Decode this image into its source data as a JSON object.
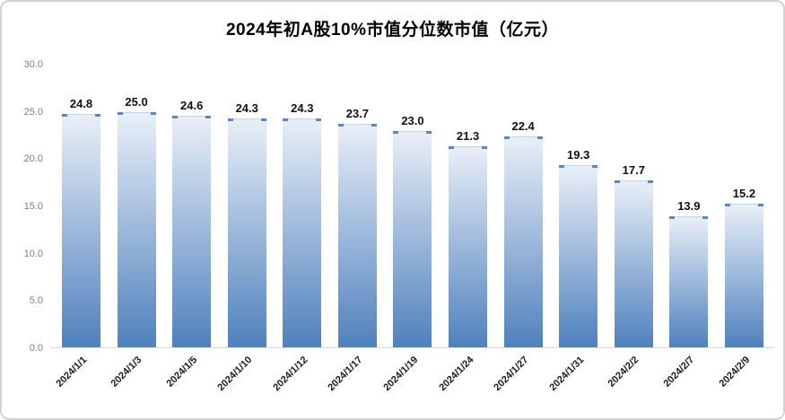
{
  "chart_data": {
    "type": "bar",
    "title": "2024年初A股10%市值分位数市值（亿元）",
    "categories": [
      "2024/1/1",
      "2024/1/3",
      "2024/1/5",
      "2024/1/10",
      "2024/1/12",
      "2024/1/17",
      "2024/1/19",
      "2024/1/24",
      "2024/1/27",
      "2024/1/31",
      "2024/2/2",
      "2024/2/7",
      "2024/2/9"
    ],
    "values": [
      24.8,
      25.0,
      24.6,
      24.3,
      24.3,
      23.7,
      23.0,
      21.3,
      22.4,
      19.3,
      17.7,
      13.9,
      15.2
    ],
    "xlabel": "",
    "ylabel": "",
    "ylim": [
      0,
      30
    ],
    "y_ticks": [
      30.0,
      25.0,
      20.0,
      15.0,
      10.0,
      5.0,
      0.0
    ],
    "value_decimals": 1,
    "grid": false,
    "legend": false,
    "colors": {
      "bar_gradient_top": "#e9eff8",
      "bar_gradient_bottom": "#4f81bd",
      "bar_corner_accent": "#4472c4",
      "value_label": "#111111",
      "axis_label": "#7f7f7f",
      "axis_line": "#d9d9d9",
      "card_border": "#d3d3d3",
      "background": "#ffffff"
    }
  }
}
